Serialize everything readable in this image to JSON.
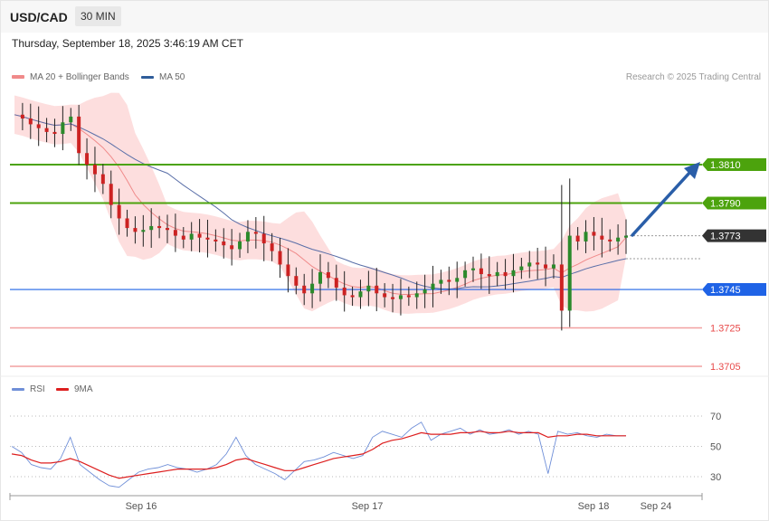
{
  "header": {
    "symbol": "USD/CAD",
    "interval": "30 MIN",
    "datetime": "Thursday, September 18, 2025 3:46:19 AM CET"
  },
  "legend": {
    "ma20": "MA 20 + Bollinger Bands",
    "ma50": "MA 50",
    "credit": "Research © 2025 Trading Central"
  },
  "rsi_legend": {
    "rsi": "RSI",
    "ma9": "9MA"
  },
  "colors": {
    "green": "#4ca30d",
    "blue": "#1f63e6",
    "red": "#e84a4a",
    "bull": "#2b8a2b",
    "bear": "#cc2222",
    "band": "#fdd8d8",
    "ma20": "#f08a8a",
    "ma50": "#5a6fa8",
    "arrow": "#2a5ea8"
  },
  "chart_data": [
    {
      "type": "candlestick",
      "symbol": "USD/CAD",
      "interval": "30 MIN",
      "ylim": [
        1.37,
        1.3845
      ],
      "x_ticks": [
        "Sep 16",
        "Sep 17",
        "Sep 18",
        "Sep 24"
      ],
      "levels": [
        {
          "value": "1.3810",
          "price": 1.381,
          "role": "resistance",
          "color": "#4ca30d"
        },
        {
          "value": "1.3790",
          "price": 1.379,
          "role": "resistance",
          "color": "#4ca30d"
        },
        {
          "value": "1.3773",
          "price": 1.3773,
          "role": "last",
          "color": "#333333"
        },
        {
          "value": "1.3745",
          "price": 1.3745,
          "role": "pivot",
          "color": "#1f63e6"
        },
        {
          "value": "1.3725",
          "price": 1.3725,
          "role": "support",
          "color": "#e84a4a"
        },
        {
          "value": "1.3705",
          "price": 1.3705,
          "role": "support",
          "color": "#e84a4a"
        }
      ],
      "series": [
        {
          "name": "MA 20",
          "approx": true
        },
        {
          "name": "MA 50",
          "approx": true
        }
      ],
      "close_path": [
        1.3836,
        1.3834,
        1.3831,
        1.3829,
        1.3827,
        1.3826,
        1.3832,
        1.3835,
        1.3816,
        1.381,
        1.3805,
        1.38,
        1.3789,
        1.3782,
        1.3777,
        1.3775,
        1.3776,
        1.3778,
        1.3777,
        1.3776,
        1.3773,
        1.3771,
        1.3774,
        1.3772,
        1.3771,
        1.377,
        1.3768,
        1.3766,
        1.377,
        1.3775,
        1.3774,
        1.3769,
        1.3765,
        1.3758,
        1.3752,
        1.3747,
        1.3743,
        1.3748,
        1.3754,
        1.3751,
        1.3746,
        1.3742,
        1.3741,
        1.3744,
        1.3747,
        1.3743,
        1.3741,
        1.374,
        1.3742,
        1.3741,
        1.3743,
        1.3745,
        1.3748,
        1.375,
        1.3749,
        1.3751,
        1.3755,
        1.3756,
        1.3753,
        1.3752,
        1.3754,
        1.3752,
        1.3755,
        1.3757,
        1.3759,
        1.3758,
        1.3756,
        1.3758,
        1.3734,
        1.3773,
        1.377,
        1.3775,
        1.3773,
        1.3771,
        1.377,
        1.3772,
        1.3773
      ]
    },
    {
      "type": "line",
      "ylim": [
        20,
        80
      ],
      "y_ticks": [
        "70",
        "50",
        "30"
      ],
      "series": [
        {
          "name": "RSI",
          "values": [
            50,
            46,
            38,
            36,
            35,
            42,
            56,
            38,
            33,
            28,
            24,
            23,
            28,
            33,
            35,
            36,
            38,
            36,
            35,
            33,
            35,
            38,
            45,
            56,
            44,
            38,
            35,
            32,
            28,
            34,
            40,
            41,
            43,
            46,
            44,
            42,
            44,
            56,
            60,
            58,
            56,
            62,
            66,
            54,
            58,
            60,
            62,
            58,
            61,
            58,
            59,
            61,
            58,
            60,
            58,
            32,
            60,
            58,
            59,
            57,
            56,
            58,
            57,
            57
          ]
        },
        {
          "name": "9MA",
          "values": [
            45,
            44,
            41,
            39,
            39,
            40,
            42,
            40,
            37,
            34,
            31,
            29,
            30,
            31,
            32,
            33,
            34,
            35,
            35,
            35,
            35,
            36,
            38,
            41,
            42,
            40,
            38,
            36,
            34,
            34,
            36,
            38,
            40,
            42,
            43,
            44,
            45,
            48,
            52,
            54,
            55,
            57,
            59,
            58,
            58,
            58,
            59,
            59,
            60,
            59,
            59,
            60,
            59,
            59,
            59,
            56,
            57,
            57,
            58,
            58,
            57,
            57,
            57,
            57
          ]
        }
      ]
    }
  ]
}
